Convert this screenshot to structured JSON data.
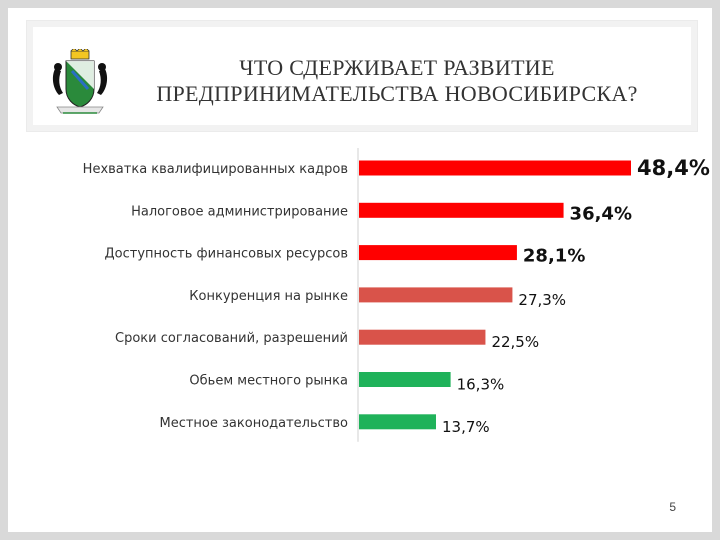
{
  "title_lines": [
    "ЧТО СДЕРЖИВАЕТ РАЗВИТИЕ",
    "ПРЕДПРИНИМАТЕЛЬСТВА НОВОСИБИРСКА?"
  ],
  "page_number": "5",
  "colors": {
    "top_three": "#ff0000",
    "middle": "#d9534a",
    "bottom": "#1fb25a",
    "axis": "#d0d0d0"
  },
  "chart_data": {
    "type": "bar",
    "orientation": "horizontal",
    "categories": [
      "Нехватка квалифицированных кадров",
      "Налоговое администрирование",
      "Доступность финансовых ресурсов",
      "Конкуренция на рынке",
      "Сроки согласований, разрешений",
      "Обьем местного рынка",
      "Местное законодательство"
    ],
    "values": [
      48.4,
      36.4,
      28.1,
      27.3,
      22.5,
      16.3,
      13.7
    ],
    "value_labels": [
      "48,4%",
      "36,4%",
      "28,1%",
      "27,3%",
      "22,5%",
      "16,3%",
      "13,7%"
    ],
    "bar_color_groups": [
      "top_three",
      "top_three",
      "top_three",
      "middle",
      "middle",
      "bottom",
      "bottom"
    ],
    "bold_labels": [
      true,
      true,
      true,
      false,
      false,
      false,
      false
    ],
    "xlim": [
      0,
      48.4
    ],
    "grid": false
  }
}
